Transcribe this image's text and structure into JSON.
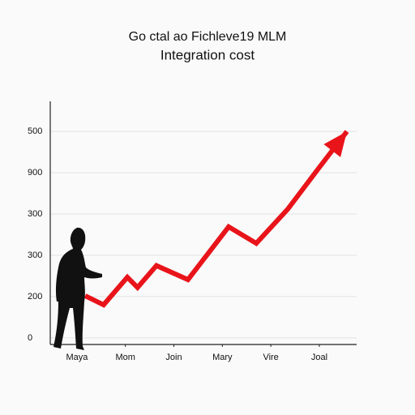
{
  "chart_data": {
    "type": "line",
    "title": "Go ctal ao Fichleve19 MLM",
    "subtitle": "Integration cost",
    "xlim": [
      -0.55,
      5.77
    ],
    "xticks": [
      {
        "value": 0,
        "label": "Maya"
      },
      {
        "value": 1,
        "label": "Mom"
      },
      {
        "value": 2,
        "label": "Join"
      },
      {
        "value": 3,
        "label": "Mary"
      },
      {
        "value": 4,
        "label": "Vire"
      },
      {
        "value": 5,
        "label": "Joal"
      }
    ],
    "ylim": [
      -0.16,
      5.73
    ],
    "yticks": [
      {
        "value": 0,
        "label": "0"
      },
      {
        "value": 1,
        "label": "200"
      },
      {
        "value": 2,
        "label": "300"
      },
      {
        "value": 3,
        "label": "300"
      },
      {
        "value": 4,
        "label": "900"
      },
      {
        "value": 5,
        "label": "500"
      }
    ],
    "grid": true,
    "series": [
      {
        "color": "#e8141a",
        "x": [
          0.17,
          0.55,
          1.04,
          1.25,
          1.64,
          2.29,
          3.13,
          3.7,
          4.35,
          5.02,
          5.57
        ],
        "values": [
          1.02,
          0.8,
          1.47,
          1.22,
          1.75,
          1.41,
          2.69,
          2.29,
          3.12,
          4.16,
          5.0
        ]
      }
    ]
  }
}
